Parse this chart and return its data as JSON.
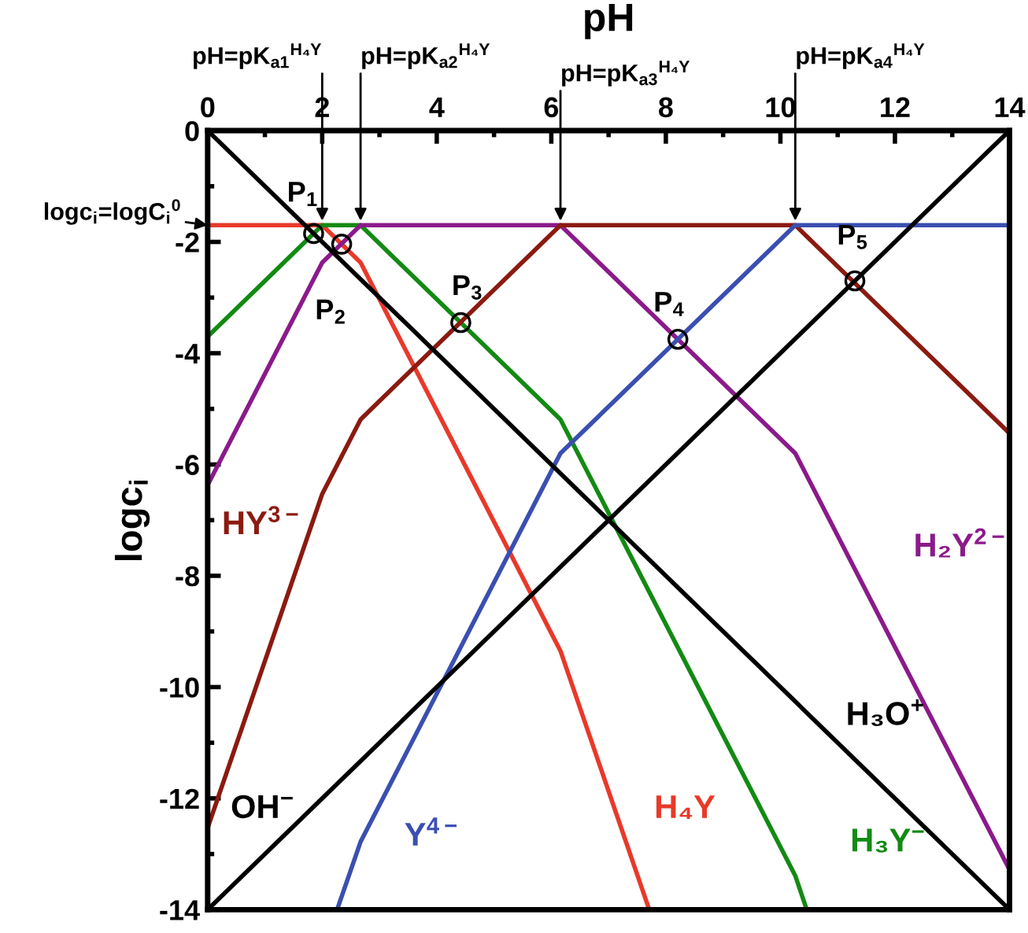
{
  "chart_data": {
    "type": "line",
    "xlabel": "pH",
    "ylabel": "logc$_{i}$",
    "xlim": [
      0,
      14
    ],
    "xticks": [
      0,
      2,
      4,
      6,
      8,
      10,
      12,
      14
    ],
    "ylim": [
      -14,
      0
    ],
    "yticks": [
      -14,
      -12,
      -10,
      -8,
      -6,
      -4,
      -2,
      0
    ],
    "grid": false,
    "legend": false,
    "line_style": "solid",
    "series": [
      {
        "color": "#e8392a",
        "x": [
          0,
          2.0,
          2.67,
          6.16,
          7.71
        ],
        "values": [
          -1.7,
          -1.7,
          -2.37,
          -9.35,
          -14
        ]
      },
      {
        "color": "#138a13",
        "x": [
          0,
          2.0,
          2.67,
          6.16,
          10.26,
          10.46
        ],
        "values": [
          -3.7,
          -1.7,
          -1.7,
          -5.19,
          -13.39,
          -14
        ]
      },
      {
        "color": "#8b1a8b",
        "x": [
          0,
          2.0,
          2.67,
          6.16,
          10.26,
          14
        ],
        "values": [
          -6.37,
          -2.37,
          -1.7,
          -1.7,
          -5.8,
          -13.28
        ]
      },
      {
        "color": "#8b1a10",
        "x": [
          0,
          2.0,
          2.67,
          6.16,
          10.26,
          14
        ],
        "values": [
          -12.53,
          -6.53,
          -5.19,
          -1.7,
          -1.7,
          -5.44
        ]
      },
      {
        "color": "#3a4fb0",
        "x": [
          2.26,
          2.67,
          6.16,
          10.26,
          14
        ],
        "values": [
          -14,
          -12.78,
          -5.8,
          -1.7,
          -1.7
        ]
      },
      {
        "color": "#000000",
        "x": [
          0,
          14
        ],
        "values": [
          0,
          -14
        ]
      },
      {
        "color": "#000000",
        "x": [
          0,
          14
        ],
        "values": [
          -14,
          0
        ]
      },
      {
        "type": "scatter",
        "marker": "circle",
        "color": "#000000",
        "x": [
          1.85,
          2.34,
          4.42,
          8.21,
          11.3
        ],
        "values": [
          -1.85,
          -2.04,
          -3.45,
          -3.75,
          -2.7
        ]
      }
    ],
    "annotations": [
      {
        "text": "H₄Y",
        "x": 7.11,
        "y": -12.2
      },
      {
        "text": "H₃Y$^{−}$",
        "x": 9.97,
        "y": -12.8
      },
      {
        "text": "H₂Y$^{2−}$",
        "x": 11.11,
        "y": -7.5
      },
      {
        "text": "HY$^{3−}$",
        "x": 1.81,
        "y": -7.1
      },
      {
        "text": "Y$^{4−}$",
        "x": 2.69,
        "y": -12.7
      },
      {
        "text": "H₃O$^{+}$",
        "x": 10.65,
        "y": -10.65
      },
      {
        "text": "OH$^{−}$",
        "x": 1.8,
        "y": -12.2
      },
      {
        "text": "P$_{1}$",
        "x": 1.85,
        "y": -1.85
      },
      {
        "text": "P$_{2}$",
        "x": 2.34,
        "y": -2.04
      },
      {
        "text": "P$_{3}$",
        "x": 4.42,
        "y": -3.45
      },
      {
        "text": "P$_{4}$",
        "x": 8.21,
        "y": -3.75
      },
      {
        "text": "P$_{5}$",
        "x": 11.3,
        "y": -2.7
      },
      {
        "text": "pH=pK$_{a1}$$^{H₄Y}$",
        "x": 2.0,
        "y": -1.7
      },
      {
        "text": "pH=pK$_{a2}$$^{H₄Y}$",
        "x": 2.67,
        "y": -1.7
      },
      {
        "text": "pH=pK$_{a3}$$^{H₄Y}$",
        "x": 6.16,
        "y": -1.7
      },
      {
        "text": "pH=pK$_{a4}$$^{H₄Y}$",
        "x": 10.26,
        "y": -1.7
      },
      {
        "text": "logc$_{i}$=logC$_{i}$$^{0}$",
        "x": 0,
        "y": -1.7
      }
    ]
  }
}
